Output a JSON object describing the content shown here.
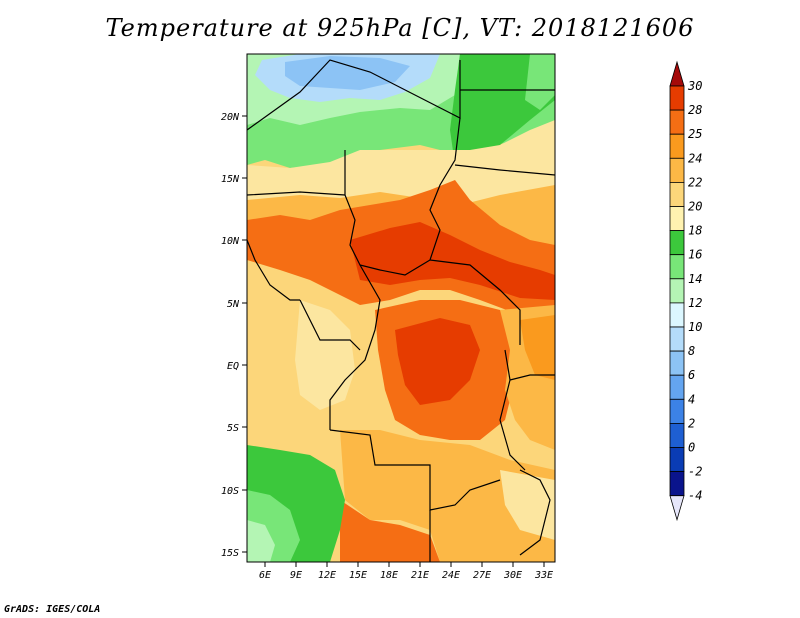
{
  "title": "Temperature at 925hPa [C], VT: 2018121606",
  "credit": "GrADS: IGES/COLA",
  "map": {
    "lat_labels": [
      "20N",
      "15N",
      "10N",
      "5N",
      "EQ",
      "5S",
      "10S",
      "15S"
    ],
    "lon_labels": [
      "6E",
      "9E",
      "12E",
      "15E",
      "18E",
      "21E",
      "24E",
      "27E",
      "30E",
      "33E"
    ]
  },
  "colorbar": {
    "labels": [
      "30",
      "28",
      "25",
      "24",
      "22",
      "20",
      "18",
      "16",
      "14",
      "12",
      "10",
      "8",
      "6",
      "4",
      "2",
      "0",
      "-2",
      "-4"
    ],
    "colors": [
      "#a50a0a",
      "#e63c00",
      "#f56e14",
      "#fa9a1e",
      "#fcb846",
      "#fcd67a",
      "#fff2b0",
      "#3cc83c",
      "#78e678",
      "#b4f5b4",
      "#dcf7ff",
      "#b4dcfa",
      "#8cc3f5",
      "#64a5f0",
      "#3c82e6",
      "#1e5fd2",
      "#0a3cb4",
      "#0a148c",
      "#e6e6fa"
    ]
  }
}
